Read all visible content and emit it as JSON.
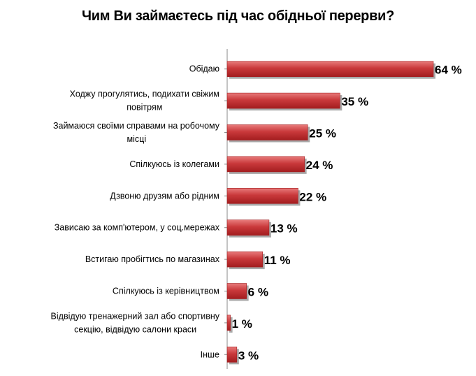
{
  "chart_data": {
    "type": "bar",
    "orientation": "horizontal",
    "title": "Чим Ви займаєтесь під час обідньої перерви?",
    "categories": [
      [
        "Обідаю"
      ],
      [
        "Ходжу прогулятись, подихати свіжим",
        "повітрям"
      ],
      [
        "Займаюся своїми справами на робочому",
        "місці"
      ],
      [
        "Спілкуюсь із колегами"
      ],
      [
        "Дзвоню друзям або рідним"
      ],
      [
        "Зависаю за комп'ютером, у соц.мережах"
      ],
      [
        "Встигаю пробігтись по магазинах"
      ],
      [
        "Спілкуюсь із керівництвом"
      ],
      [
        "Відвідую тренажерний зал або спортивну",
        "секцію, відвідую салони краси"
      ],
      [
        "Інше"
      ]
    ],
    "values": [
      64,
      35,
      25,
      24,
      22,
      13,
      11,
      6,
      1,
      3
    ],
    "value_labels": [
      "64 %",
      "35 %",
      "25 %",
      "24 %",
      "22 %",
      "13 %",
      "11 %",
      "6 %",
      "1 %",
      "3 %"
    ],
    "xlim": [
      0,
      100
    ],
    "grid": false,
    "legend": "none",
    "colors": {
      "bar_dark": "#a31d1f",
      "bar_mid": "#c9393b",
      "bar_light": "#e87b7b",
      "shadow": "#8c8c8c",
      "axis": "#8a8a8a"
    }
  }
}
